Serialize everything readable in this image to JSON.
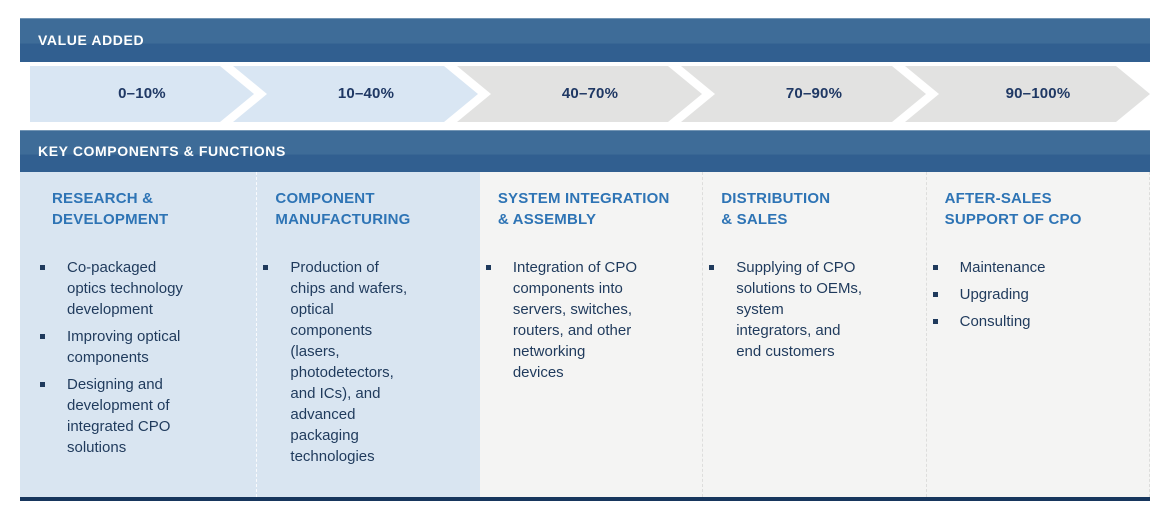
{
  "colors": {
    "bar_top": "#3e6c98",
    "bar_bottom": "#315f90",
    "bar_text": "#ffffff",
    "chevron_blue": "#d9e6f3",
    "chevron_gray": "#e2e2e1",
    "chevron_text": "#1f3864",
    "column_blue_bg": "#d9e5f1",
    "column_gray_bg": "#f4f4f3",
    "column_title": "#2e74b5",
    "body_text": "#1f3a5c",
    "bottom_rule": "#17365d"
  },
  "value_added": {
    "title": "VALUE ADDED",
    "stages": [
      {
        "label": "0–10%",
        "variant": "blue"
      },
      {
        "label": "10–40%",
        "variant": "blue"
      },
      {
        "label": "40–70%",
        "variant": "gray"
      },
      {
        "label": "70–90%",
        "variant": "gray"
      },
      {
        "label": "90–100%",
        "variant": "gray"
      }
    ]
  },
  "key_components": {
    "title": "KEY COMPONENTS & FUNCTIONS",
    "columns": [
      {
        "title": "RESEARCH &\nDEVELOPMENT",
        "variant": "blue",
        "bullets": [
          "Co-packaged\noptics technology\ndevelopment",
          "Improving optical\ncomponents",
          "Designing and\ndevelopment of\nintegrated CPO\nsolutions"
        ]
      },
      {
        "title": "COMPONENT\nMANUFACTURING",
        "variant": "blue",
        "bullets": [
          "Production of\nchips and wafers,\noptical\ncomponents\n(lasers,\nphotodetectors,\nand ICs), and\nadvanced\npackaging\ntechnologies"
        ]
      },
      {
        "title": "SYSTEM INTEGRATION\n& ASSEMBLY",
        "variant": "gray",
        "bullets": [
          "Integration of CPO\ncomponents into\nservers, switches,\nrouters, and other\nnetworking\ndevices"
        ]
      },
      {
        "title": "DISTRIBUTION\n& SALES",
        "variant": "gray",
        "bullets": [
          "Supplying of CPO\nsolutions to OEMs,\nsystem\nintegrators, and\nend customers"
        ]
      },
      {
        "title": "AFTER-SALES\nSUPPORT OF CPO",
        "variant": "gray",
        "bullets": [
          "Maintenance",
          "Upgrading",
          "Consulting"
        ]
      }
    ]
  }
}
